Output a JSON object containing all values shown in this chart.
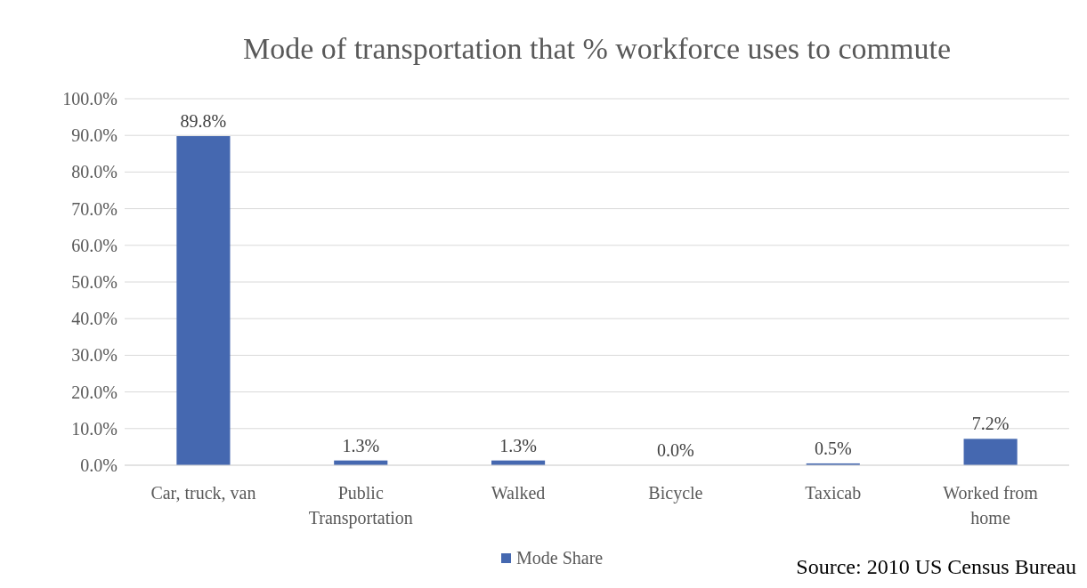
{
  "chart_data": {
    "type": "bar",
    "title": "Mode of transportation that % workforce uses to commute",
    "categories": [
      "Car, truck, van",
      "Public Transportation",
      "Walked",
      "Bicycle",
      "Taxicab",
      "Worked from home"
    ],
    "series": [
      {
        "name": "Mode Share",
        "color": "#4568b0",
        "values": [
          89.8,
          1.3,
          1.3,
          0.0,
          0.5,
          7.2
        ],
        "value_labels": [
          "89.8%",
          "1.3%",
          "1.3%",
          "0.0%",
          "0.5%",
          "7.2%"
        ]
      }
    ],
    "ylim": [
      0,
      100
    ],
    "yticks": [
      {
        "value": 0,
        "label": "0.0%"
      },
      {
        "value": 10,
        "label": "10.0%"
      },
      {
        "value": 20,
        "label": "20.0%"
      },
      {
        "value": 30,
        "label": "30.0%"
      },
      {
        "value": 40,
        "label": "40.0%"
      },
      {
        "value": 50,
        "label": "50.0%"
      },
      {
        "value": 60,
        "label": "60.0%"
      },
      {
        "value": 70,
        "label": "70.0%"
      },
      {
        "value": 80,
        "label": "80.0%"
      },
      {
        "value": 90,
        "label": "90.0%"
      },
      {
        "value": 100,
        "label": "100.0%"
      }
    ],
    "grid": "y",
    "legend": "bottom",
    "annotations": [
      "Source: 2010 US Census Bureau"
    ]
  }
}
